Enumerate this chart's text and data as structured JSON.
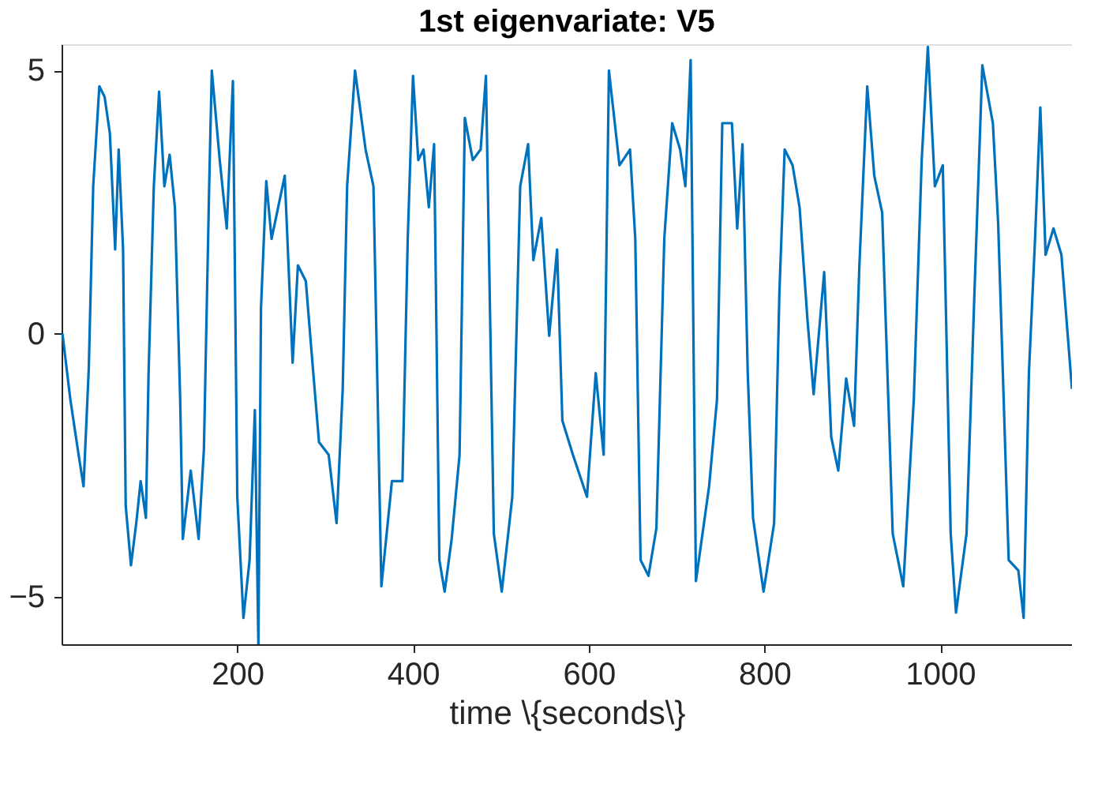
{
  "chart_data": {
    "type": "line",
    "title": "1st eigenvariate: V5",
    "xlabel": "time \\{seconds\\}",
    "xlim": [
      0,
      1150
    ],
    "ylim": [
      -5.9,
      5.5
    ],
    "xticks": [
      200,
      400,
      600,
      800,
      1000
    ],
    "yticks": [
      -5,
      0,
      5
    ],
    "grid": false,
    "line_style": "solid",
    "series": [
      {
        "color": "#0072bd",
        "x": [
          1,
          10,
          19,
          25,
          31,
          36,
          43,
          49,
          55,
          61,
          65,
          70,
          73,
          79,
          85,
          90,
          96,
          99,
          105,
          111,
          117,
          123,
          129,
          135,
          138,
          147,
          156,
          162,
          168,
          171,
          180,
          188,
          195,
          200,
          207,
          214,
          220,
          224,
          227,
          233,
          239,
          254,
          263,
          269,
          278,
          284,
          293,
          304,
          313,
          320,
          325,
          334,
          346,
          355,
          364,
          376,
          388,
          394,
          400,
          406,
          412,
          418,
          424,
          430,
          436,
          444,
          453,
          459,
          468,
          477,
          483,
          492,
          501,
          513,
          522,
          531,
          537,
          546,
          555,
          564,
          570,
          582,
          598,
          608,
          617,
          623,
          635,
          647,
          653,
          659,
          668,
          677,
          686,
          695,
          704,
          710,
          716,
          722,
          737,
          746,
          752,
          763,
          769,
          775,
          781,
          787,
          799,
          811,
          817,
          823,
          832,
          840,
          849,
          856,
          868,
          876,
          884,
          893,
          902,
          908,
          917,
          925,
          934,
          946,
          958,
          970,
          979,
          986,
          994,
          1003,
          1012,
          1018,
          1030,
          1039,
          1048,
          1060,
          1066,
          1078,
          1089,
          1095,
          1101,
          1108,
          1114,
          1120,
          1129,
          1138,
          1150
        ],
        "values": [
          0,
          -1.25,
          -2.26,
          -2.9,
          -0.65,
          2.8,
          4.7,
          4.5,
          3.8,
          1.6,
          3.5,
          1.6,
          -3.27,
          -4.4,
          -3.6,
          -2.8,
          -3.5,
          -0.76,
          2.8,
          4.6,
          2.8,
          3.4,
          2.4,
          -1.25,
          -3.9,
          -2.6,
          -3.9,
          -2.2,
          2.8,
          5.0,
          3.3,
          2.0,
          4.8,
          -3.1,
          -5.4,
          -4.3,
          -1.45,
          -5.9,
          0.5,
          2.9,
          1.8,
          3.0,
          -0.55,
          1.3,
          1.0,
          -0.24,
          -2.06,
          -2.3,
          -3.6,
          -1.05,
          2.8,
          5.0,
          3.5,
          2.8,
          -4.8,
          -2.8,
          -2.8,
          1.8,
          4.9,
          3.3,
          3.5,
          2.4,
          3.6,
          -4.3,
          -4.9,
          -3.9,
          -2.3,
          4.1,
          3.3,
          3.5,
          4.9,
          -3.8,
          -4.9,
          -3.1,
          2.8,
          3.6,
          1.4,
          2.2,
          -0.04,
          1.6,
          -1.65,
          -2.3,
          -3.1,
          -0.75,
          -2.3,
          5.0,
          3.2,
          3.5,
          1.8,
          -4.3,
          -4.6,
          -3.7,
          1.8,
          4.0,
          3.5,
          2.8,
          5.2,
          -4.7,
          -2.9,
          -1.25,
          4.0,
          4.0,
          2.0,
          3.6,
          -0.75,
          -3.5,
          -4.9,
          -3.6,
          0.77,
          3.5,
          3.2,
          2.4,
          0.26,
          -1.15,
          1.17,
          -1.96,
          -2.6,
          -0.85,
          -1.75,
          1.27,
          4.7,
          3.0,
          2.3,
          -3.8,
          -4.8,
          -1.25,
          3.3,
          5.45,
          2.8,
          3.2,
          -3.8,
          -5.3,
          -3.8,
          0.77,
          5.1,
          4.0,
          2.1,
          -4.3,
          -4.5,
          -5.4,
          -0.75,
          1.8,
          4.3,
          1.5,
          2.0,
          1.5,
          -1.05
        ]
      }
    ]
  }
}
